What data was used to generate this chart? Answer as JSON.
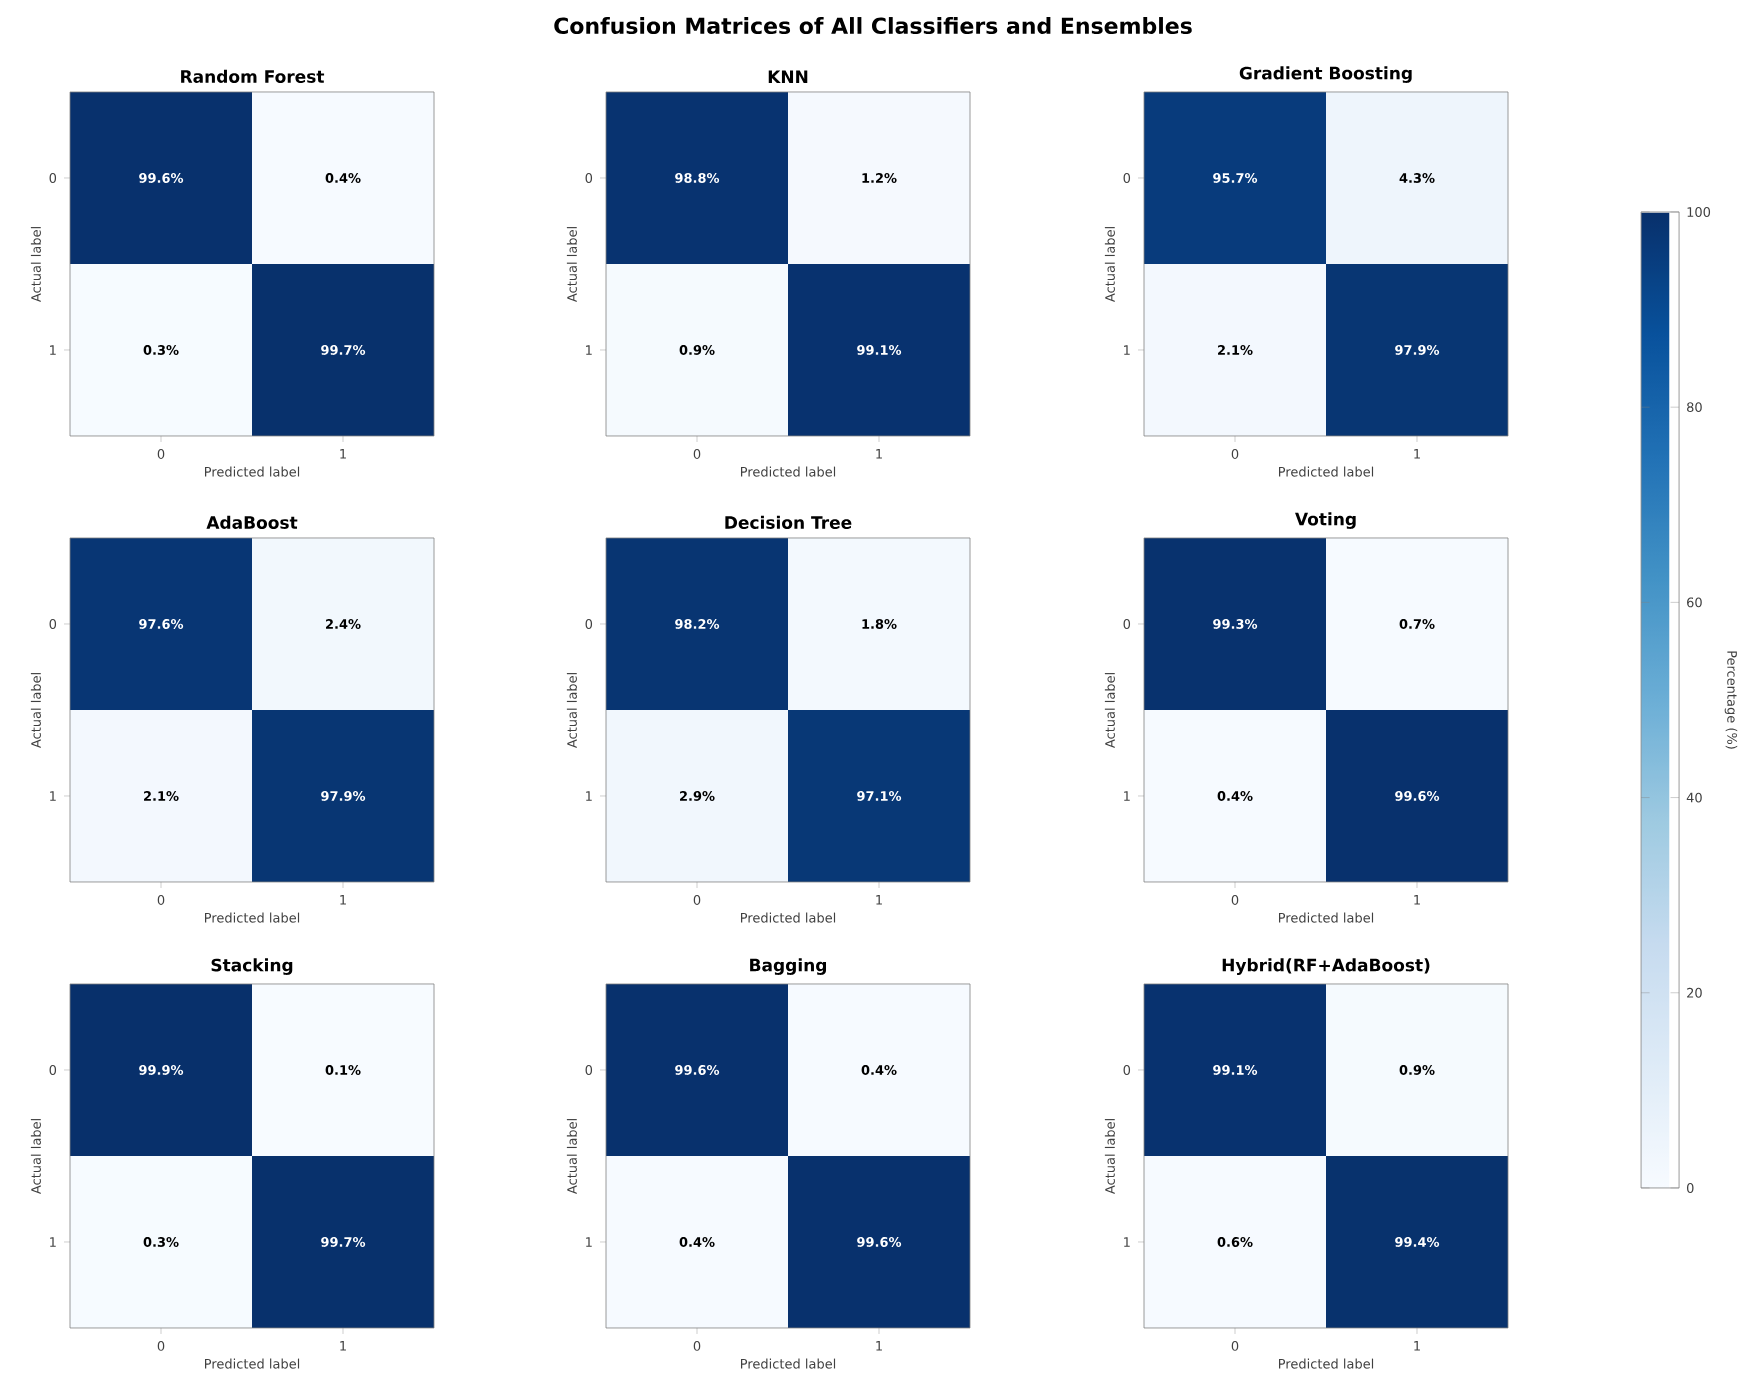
{
  "chart_data": [
    {
      "type": "heatmap",
      "title": "Random Forest",
      "annotations": [
        "Confusion Matrices of All Classifiers and Ensembles"
      ],
      "categories": [
        "0",
        "1"
      ],
      "y_categories": [
        "0",
        "1"
      ],
      "xlabel": "Predicted label",
      "ylabel": "Actual label",
      "cells": [
        [
          99.6,
          0.4
        ],
        [
          0.3,
          99.7
        ]
      ],
      "cell_labels": [
        [
          "99.6%",
          "0.4%"
        ],
        [
          "0.3%",
          "99.7%"
        ]
      ]
    },
    {
      "type": "heatmap",
      "title": "KNN",
      "categories": [
        "0",
        "1"
      ],
      "y_categories": [
        "0",
        "1"
      ],
      "xlabel": "Predicted label",
      "ylabel": "Actual label",
      "cells": [
        [
          98.8,
          1.2
        ],
        [
          0.9,
          99.1
        ]
      ],
      "cell_labels": [
        [
          "98.8%",
          "1.2%"
        ],
        [
          "0.9%",
          "99.1%"
        ]
      ]
    },
    {
      "type": "heatmap",
      "title": "Gradient Boosting",
      "categories": [
        "0",
        "1"
      ],
      "y_categories": [
        "0",
        "1"
      ],
      "xlabel": "Predicted label",
      "ylabel": "Actual label",
      "cells": [
        [
          95.7,
          4.3
        ],
        [
          2.1,
          97.9
        ]
      ],
      "cell_labels": [
        [
          "95.7%",
          "4.3%"
        ],
        [
          "2.1%",
          "97.9%"
        ]
      ]
    },
    {
      "type": "heatmap",
      "title": "AdaBoost",
      "categories": [
        "0",
        "1"
      ],
      "y_categories": [
        "0",
        "1"
      ],
      "xlabel": "Predicted label",
      "ylabel": "Actual label",
      "cells": [
        [
          97.6,
          2.4
        ],
        [
          2.1,
          97.9
        ]
      ],
      "cell_labels": [
        [
          "97.6%",
          "2.4%"
        ],
        [
          "2.1%",
          "97.9%"
        ]
      ]
    },
    {
      "type": "heatmap",
      "title": "Decision Tree",
      "categories": [
        "0",
        "1"
      ],
      "y_categories": [
        "0",
        "1"
      ],
      "xlabel": "Predicted label",
      "ylabel": "Actual label",
      "cells": [
        [
          98.2,
          1.8
        ],
        [
          2.9,
          97.1
        ]
      ],
      "cell_labels": [
        [
          "98.2%",
          "1.8%"
        ],
        [
          "2.9%",
          "97.1%"
        ]
      ]
    },
    {
      "type": "heatmap",
      "title": "Voting",
      "categories": [
        "0",
        "1"
      ],
      "y_categories": [
        "0",
        "1"
      ],
      "xlabel": "Predicted label",
      "ylabel": "Actual label",
      "cells": [
        [
          99.3,
          0.7
        ],
        [
          0.4,
          99.6
        ]
      ],
      "cell_labels": [
        [
          "99.3%",
          "0.7%"
        ],
        [
          "0.4%",
          "99.6%"
        ]
      ]
    },
    {
      "type": "heatmap",
      "title": "Stacking",
      "categories": [
        "0",
        "1"
      ],
      "y_categories": [
        "0",
        "1"
      ],
      "xlabel": "Predicted label",
      "ylabel": "Actual label",
      "cells": [
        [
          99.9,
          0.1
        ],
        [
          0.3,
          99.7
        ]
      ],
      "cell_labels": [
        [
          "99.9%",
          "0.1%"
        ],
        [
          "0.3%",
          "99.7%"
        ]
      ]
    },
    {
      "type": "heatmap",
      "title": "Bagging",
      "categories": [
        "0",
        "1"
      ],
      "y_categories": [
        "0",
        "1"
      ],
      "xlabel": "Predicted label",
      "ylabel": "Actual label",
      "cells": [
        [
          99.6,
          0.4
        ],
        [
          0.4,
          99.6
        ]
      ],
      "cell_labels": [
        [
          "99.6%",
          "0.4%"
        ],
        [
          "0.4%",
          "99.6%"
        ]
      ]
    },
    {
      "type": "heatmap",
      "title": "Hybrid(RF+AdaBoost)",
      "categories": [
        "0",
        "1"
      ],
      "y_categories": [
        "0",
        "1"
      ],
      "xlabel": "Predicted label",
      "ylabel": "Actual label",
      "cells": [
        [
          99.1,
          0.9
        ],
        [
          0.6,
          99.4
        ]
      ],
      "cell_labels": [
        [
          "99.1%",
          "0.9%"
        ],
        [
          "0.6%",
          "99.4%"
        ]
      ],
      "clim": [
        0,
        100
      ],
      "cticks": [
        0,
        20,
        40,
        60,
        80,
        100
      ],
      "clabel": "Percentage (%)"
    }
  ]
}
